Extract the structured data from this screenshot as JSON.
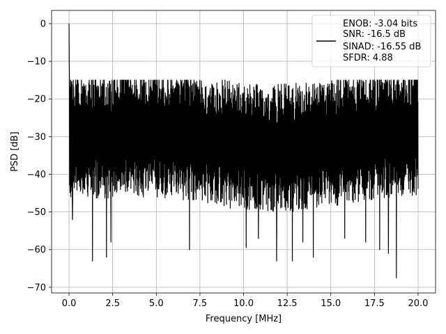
{
  "chart_data": {
    "type": "line",
    "xlabel": "Frequency [MHz]",
    "ylabel": "PSD [dB]",
    "xlim": [
      -1.0,
      21.0
    ],
    "ylim": [
      -71.5,
      3.5
    ],
    "xticks": [
      0.0,
      2.5,
      5.0,
      7.5,
      10.0,
      12.5,
      15.0,
      17.5,
      20.0
    ],
    "xtick_labels": [
      "0.0",
      "2.5",
      "5.0",
      "7.5",
      "10.0",
      "12.5",
      "15.0",
      "17.5",
      "20.0"
    ],
    "yticks": [
      0,
      -10,
      -20,
      -30,
      -40,
      -50,
      -60,
      -70
    ],
    "ytick_labels": [
      "0",
      "−10",
      "−20",
      "−30",
      "−40",
      "−50",
      "−60",
      "−70"
    ],
    "grid": true,
    "legend_position": "top-right",
    "legend_entries": [
      "ENOB: -3.04 bits",
      "SNR: -16.5 dB",
      "SINAD: -16.55 dB",
      "SFDR: 4.88"
    ],
    "series": [
      {
        "color": "#000000",
        "x_range": [
          0.0,
          20.0
        ],
        "peak": {
          "x": 0.0,
          "y": 0.0
        },
        "noise_floor_band": [
          -50,
          -16
        ],
        "notable_dips": [
          {
            "x": 0.15,
            "y": -42
          },
          {
            "x": 0.2,
            "y": -52
          },
          {
            "x": 1.35,
            "y": -63
          },
          {
            "x": 2.15,
            "y": -62
          },
          {
            "x": 2.4,
            "y": -58
          },
          {
            "x": 6.9,
            "y": -60
          },
          {
            "x": 10.15,
            "y": -59.5
          },
          {
            "x": 10.85,
            "y": -57
          },
          {
            "x": 11.9,
            "y": -63
          },
          {
            "x": 12.8,
            "y": -63
          },
          {
            "x": 13.4,
            "y": -58
          },
          {
            "x": 14.0,
            "y": -62
          },
          {
            "x": 15.8,
            "y": -57
          },
          {
            "x": 17.0,
            "y": -58
          },
          {
            "x": 17.8,
            "y": -60
          },
          {
            "x": 18.3,
            "y": -61
          },
          {
            "x": 18.75,
            "y": -67.5
          }
        ]
      }
    ]
  }
}
